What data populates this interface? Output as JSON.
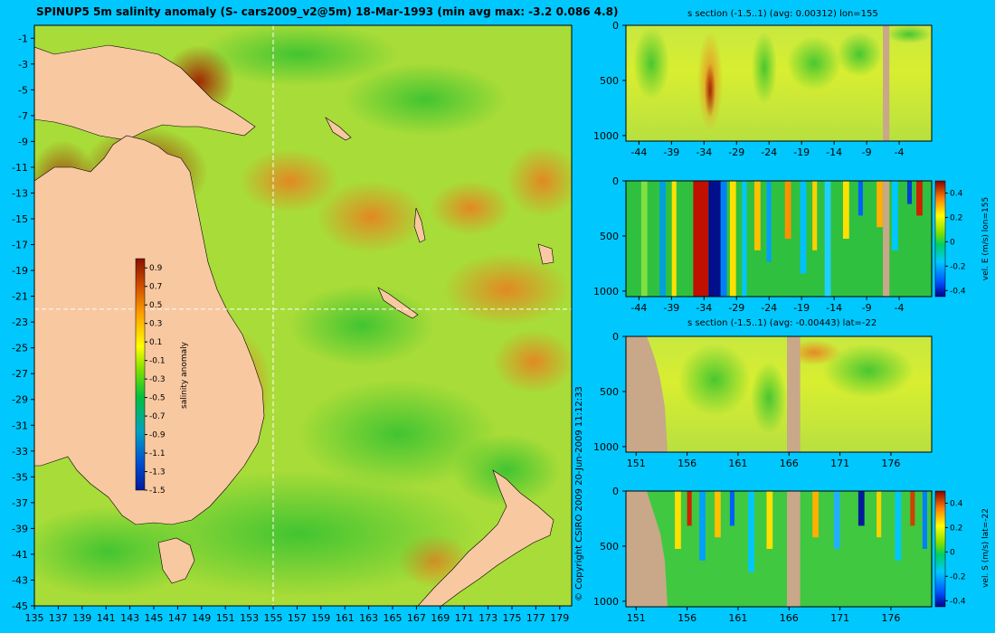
{
  "main_title": "SPINUP5 5m salinity anomaly (S- cars2009_v2@5m) 18-Mar-1993 (min avg max: -3.2 0.086 4.8)",
  "copyright": "© Copyright CSIRO 2009   20-Jun-2009 11:12:33",
  "colors": {
    "background": "#00c8ff",
    "land": "#f8c8a0",
    "section_land": "#c8a888",
    "guide_line": "#ffffff"
  },
  "chart_data": [
    {
      "type": "heatmap",
      "name": "salinity-anomaly-map",
      "title": "SPINUP5 5m salinity anomaly (S- cars2009_v2@5m) 18-Mar-1993 (min avg max: -3.2 0.086 4.8)",
      "xlim": [
        135,
        180
      ],
      "ylim": [
        -45,
        0
      ],
      "x_ticks": [
        135,
        137,
        139,
        141,
        143,
        145,
        147,
        149,
        151,
        153,
        155,
        157,
        159,
        161,
        163,
        165,
        167,
        169,
        171,
        173,
        175,
        177,
        179
      ],
      "y_ticks": [
        -1,
        -3,
        -5,
        -7,
        -9,
        -11,
        -13,
        -15,
        -17,
        -19,
        -21,
        -23,
        -25,
        -27,
        -29,
        -31,
        -33,
        -35,
        -37,
        -39,
        -41,
        -43,
        -45
      ],
      "guide_lon": 155,
      "guide_lat": -22,
      "colorbar": {
        "label": "salinity anomaly",
        "ticks": [
          0.9,
          0.7,
          0.5,
          0.3,
          0.1,
          -0.1,
          -0.3,
          -0.5,
          -0.7,
          -0.9,
          -1.1,
          -1.3,
          -1.5
        ],
        "range": [
          -1.5,
          1.0
        ]
      }
    },
    {
      "type": "heatmap",
      "name": "s-section-lon155",
      "title": "s section (-1.5..1) (avg: 0.00312) lon=155",
      "xlim": [
        -46,
        1
      ],
      "ylim": [
        1050,
        0
      ],
      "x_ticks": [
        -44,
        -39,
        -34,
        -29,
        -24,
        -19,
        -14,
        -9,
        -4
      ],
      "y_ticks": [
        0,
        500,
        1000
      ]
    },
    {
      "type": "heatmap",
      "name": "vel-e-section-lon155",
      "title": "",
      "xlim": [
        -46,
        1
      ],
      "ylim": [
        1050,
        0
      ],
      "x_ticks": [
        -44,
        -39,
        -34,
        -29,
        -24,
        -19,
        -14,
        -9,
        -4
      ],
      "y_ticks": [
        0,
        500,
        1000
      ],
      "colorbar": {
        "label": "vel. E (m/s) lon=155",
        "ticks": [
          0.4,
          0.2,
          0,
          -0.2,
          -0.4
        ],
        "range": [
          -0.45,
          0.5
        ]
      }
    },
    {
      "type": "heatmap",
      "name": "s-section-lat-22",
      "title": "s section (-1.5..1) (avg: -0.00443) lat=-22",
      "xlim": [
        150,
        180
      ],
      "ylim": [
        1050,
        0
      ],
      "x_ticks": [
        151,
        156,
        161,
        166,
        171,
        176
      ],
      "y_ticks": [
        0,
        500,
        1000
      ]
    },
    {
      "type": "heatmap",
      "name": "vel-s-section-lat-22",
      "title": "",
      "xlim": [
        150,
        180
      ],
      "ylim": [
        1050,
        0
      ],
      "x_ticks": [
        151,
        156,
        161,
        166,
        171,
        176
      ],
      "y_ticks": [
        0,
        500,
        1000
      ],
      "colorbar": {
        "label": "vel. S (m/s) lat=-22",
        "ticks": [
          0.4,
          0.2,
          0,
          -0.2,
          -0.4
        ],
        "range": [
          -0.45,
          0.5
        ]
      }
    }
  ]
}
